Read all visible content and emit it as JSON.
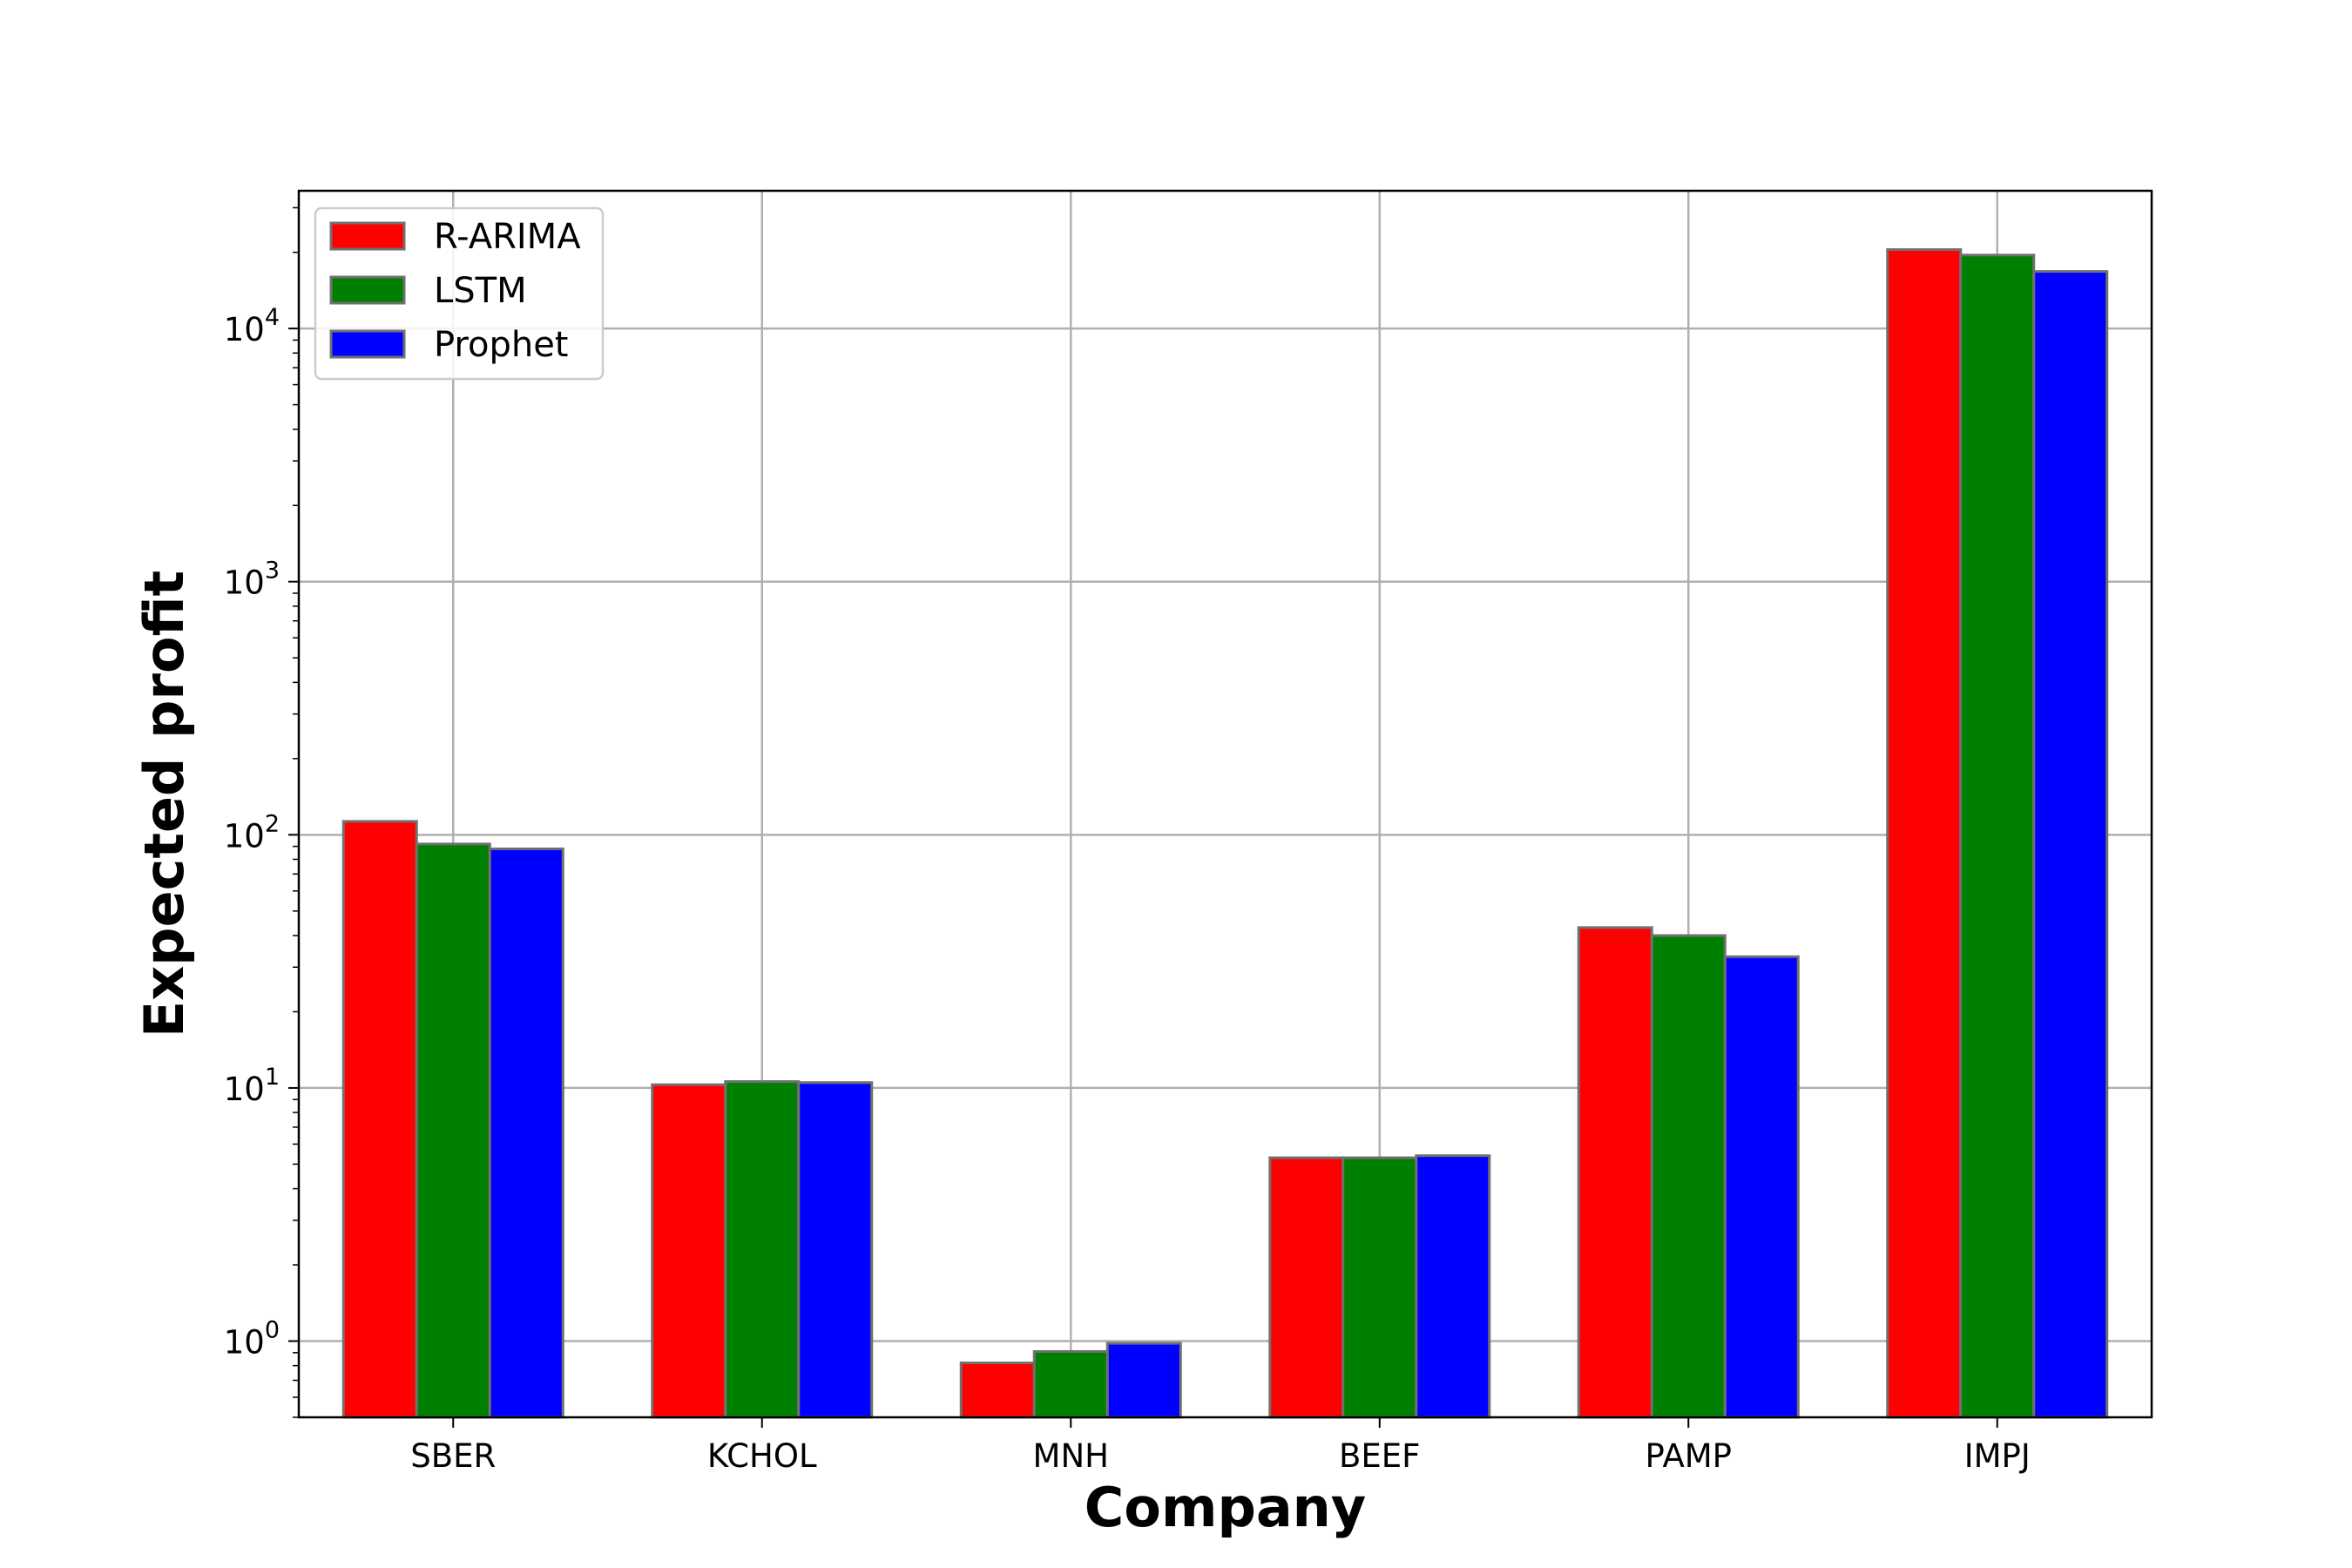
{
  "chart_data": {
    "type": "bar",
    "title": "",
    "xlabel": "Company",
    "ylabel": "Expected profit",
    "yscale": "log",
    "ylim": [
      0.5,
      35000
    ],
    "grid": true,
    "legend_position": "top-left",
    "categories": [
      "SBER",
      "KCHOL",
      "MNH",
      "BEEF",
      "PAMP",
      "IMPJ"
    ],
    "series": [
      {
        "name": "R-ARIMA",
        "color": "#ff0000",
        "values": [
          113,
          10.3,
          0.82,
          5.3,
          43,
          20500
        ]
      },
      {
        "name": "LSTM",
        "color": "#008000",
        "values": [
          92,
          10.6,
          0.91,
          5.3,
          40,
          19500
        ]
      },
      {
        "name": "Prophet",
        "color": "#0000ff",
        "values": [
          88,
          10.5,
          0.98,
          5.4,
          33,
          16800
        ]
      }
    ],
    "y_ticks": [
      {
        "base": "10",
        "exp": "0",
        "value": 1
      },
      {
        "base": "10",
        "exp": "1",
        "value": 10
      },
      {
        "base": "10",
        "exp": "2",
        "value": 100
      },
      {
        "base": "10",
        "exp": "3",
        "value": 1000
      },
      {
        "base": "10",
        "exp": "4",
        "value": 10000
      }
    ]
  }
}
